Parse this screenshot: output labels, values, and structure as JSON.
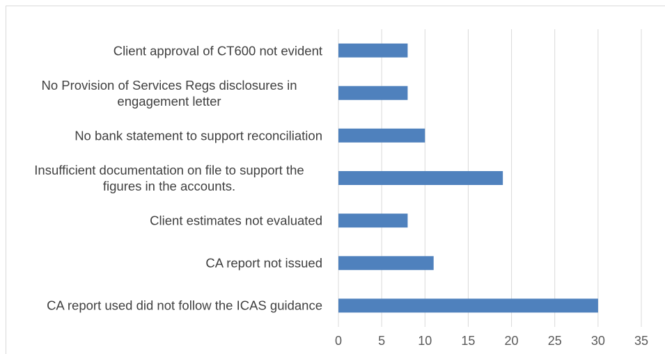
{
  "chart_data": {
    "type": "bar",
    "orientation": "horizontal",
    "categories": [
      "Client approval of CT600 not evident",
      "No Provision of Services Regs disclosures in engagement letter",
      "No bank statement to support reconciliation",
      "Insufficient documentation on file to support the figures in the accounts.",
      "Client estimates not evaluated",
      "CA report not issued",
      "CA report used did not follow the ICAS guidance"
    ],
    "values": [
      8,
      8,
      10,
      19,
      8,
      11,
      30
    ],
    "color": "#4f81bd",
    "xlim": [
      0,
      35
    ],
    "xticks": [
      0,
      5,
      10,
      15,
      20,
      25,
      30,
      35
    ],
    "grid": true
  }
}
